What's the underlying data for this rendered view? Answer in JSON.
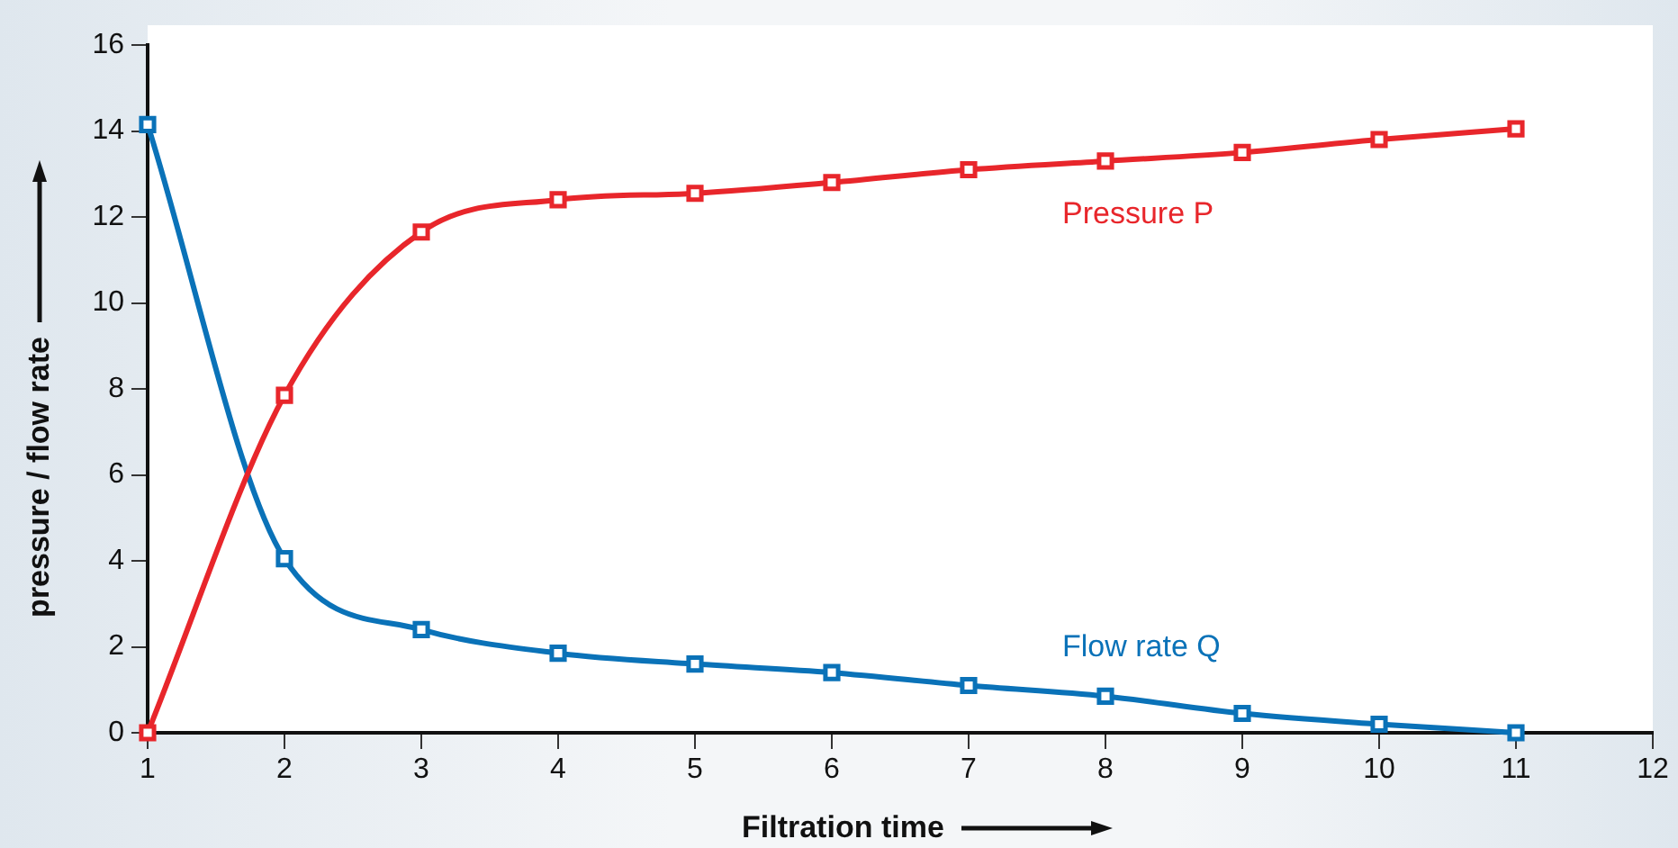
{
  "chart_data": {
    "type": "line",
    "xlabel": "Filtration time",
    "ylabel": "pressure / flow rate",
    "x": [
      1,
      2,
      3,
      4,
      5,
      6,
      7,
      8,
      9,
      10,
      11
    ],
    "series": [
      {
        "name": "Pressure P",
        "color": "#e8262b",
        "values": [
          0,
          7.85,
          11.65,
          12.4,
          12.55,
          12.8,
          13.1,
          13.3,
          13.5,
          13.8,
          14.05
        ]
      },
      {
        "name": "Flow rate Q",
        "color": "#0a72b8",
        "values": [
          14.15,
          4.05,
          2.4,
          1.85,
          1.6,
          1.4,
          1.1,
          0.85,
          0.45,
          0.2,
          0
        ]
      }
    ],
    "xlim": [
      1,
      12
    ],
    "xticks": [
      1,
      2,
      3,
      4,
      5,
      6,
      7,
      8,
      9,
      10,
      11,
      12
    ],
    "ylim": [
      0,
      16
    ],
    "yticks": [
      0,
      2,
      4,
      6,
      8,
      10,
      12,
      14,
      16
    ],
    "grid": false,
    "legend": false,
    "marker": "square",
    "line_style": "solid"
  }
}
